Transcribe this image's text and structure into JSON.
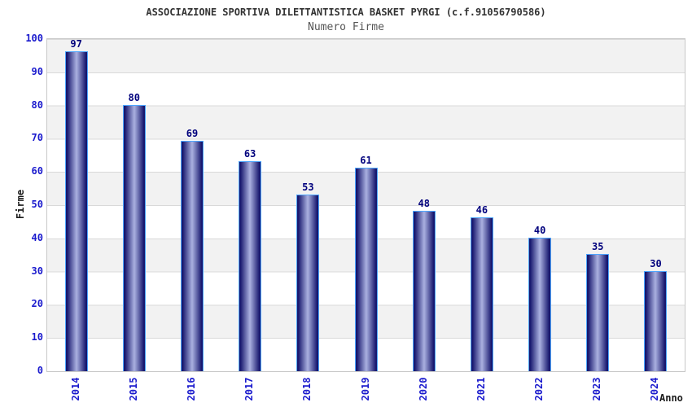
{
  "title": "ASSOCIAZIONE SPORTIVA DILETTANTISTICA BASKET PYRGI (c.f.91056790586)",
  "subtitle": "Numero Firme",
  "chart_data": {
    "type": "bar",
    "categories": [
      "2014",
      "2015",
      "2016",
      "2017",
      "2018",
      "2019",
      "2020",
      "2021",
      "2022",
      "2023",
      "2024"
    ],
    "values": [
      97,
      80,
      69,
      63,
      53,
      61,
      48,
      46,
      40,
      35,
      30
    ],
    "title": "ASSOCIAZIONE SPORTIVA DILETTANTISTICA BASKET PYRGI (c.f.91056790586)",
    "subtitle": "Numero Firme",
    "xlabel": "Anno",
    "ylabel": "Firme",
    "ylim": [
      0,
      100
    ],
    "yticks": [
      0,
      10,
      20,
      30,
      40,
      50,
      60,
      70,
      80,
      90,
      100
    ],
    "grid": "horizontal-bands-alternating",
    "legend": "none"
  },
  "colors": {
    "title": "#333333",
    "subtitle": "#555555",
    "axis_label": "#1a1a1a",
    "tick_label": "#1a1acd",
    "value_label": "#00007d",
    "bar_edge": "#17176e",
    "bar_center": "#aab1e0",
    "bar_border": "#4da6ff",
    "band_gray": "#f2f2f2",
    "gridline": "#d9d9d9",
    "plot_border": "#c8c8c8"
  }
}
